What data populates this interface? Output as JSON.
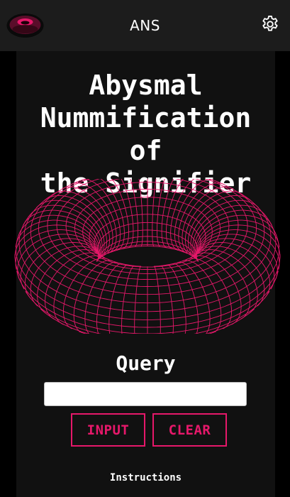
{
  "header": {
    "logo_icon": "torus-logo",
    "title": "ANS",
    "settings_icon": "gear-icon"
  },
  "main": {
    "title_lines": [
      "Abysmal",
      "Nummification of",
      "the Signifier"
    ],
    "illustration": "wireframe-torus",
    "query_label": "Query",
    "query_value": "",
    "input_button_label": "INPUT",
    "clear_button_label": "CLEAR",
    "instructions_label": "Instructions"
  },
  "colors": {
    "accent": "#e6186a",
    "background": "#000000",
    "topbar": "#1c1c1c",
    "panel": "#111111",
    "text": "#ffffff"
  }
}
